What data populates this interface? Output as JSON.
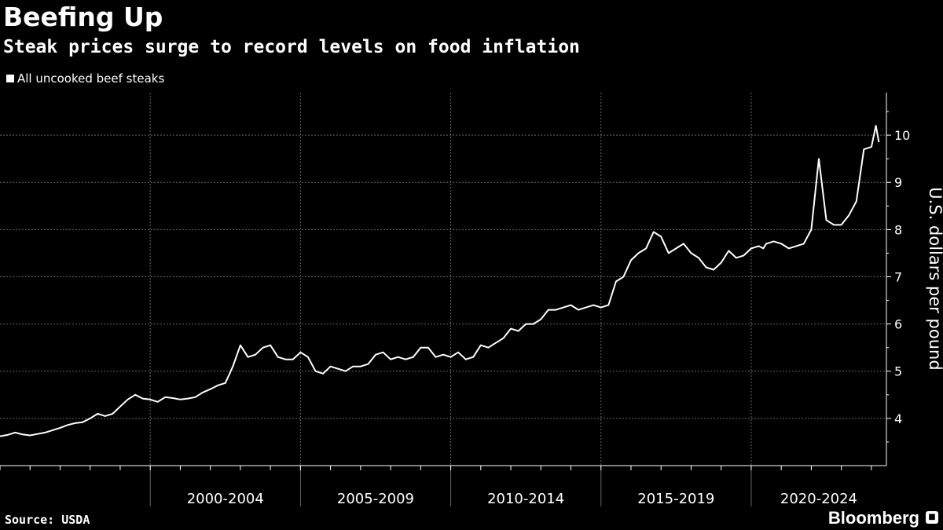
{
  "header": {
    "title": "Beefing Up",
    "subtitle": "Steak prices surge to record levels on food inflation"
  },
  "footer": {
    "source": "Source: USDA",
    "brand": "Bloomberg"
  },
  "colors": {
    "background": "#000000",
    "series": "#ffffff",
    "grid": "#666666",
    "text": "#ffffff"
  },
  "icons": {
    "brand_icon": "bloomberg-terminal-icon"
  },
  "chart_data": {
    "type": "line",
    "title": "Beefing Up",
    "subtitle": "Steak prices surge to record levels on food inflation",
    "ylabel": "U.S. dollars per pound",
    "xlabel": "",
    "ylim": [
      3,
      10.9
    ],
    "yticks": [
      4,
      5,
      6,
      7,
      8,
      9,
      10
    ],
    "xlim": [
      1995,
      2024.5
    ],
    "x_groups": [
      {
        "label": "2000-2004",
        "start": 2000,
        "end": 2005
      },
      {
        "label": "2005-2009",
        "start": 2005,
        "end": 2010
      },
      {
        "label": "2010-2014",
        "start": 2010,
        "end": 2015
      },
      {
        "label": "2015-2019",
        "start": 2015,
        "end": 2020
      },
      {
        "label": "2020-2024",
        "start": 2020,
        "end": 2025
      }
    ],
    "grid": true,
    "legend_position": "top-left",
    "series": [
      {
        "name": "All uncooked beef steaks",
        "x": [
          1995.0,
          1995.25,
          1995.5,
          1995.75,
          1996.0,
          1996.25,
          1996.5,
          1996.75,
          1997.0,
          1997.25,
          1997.5,
          1997.75,
          1998.0,
          1998.25,
          1998.5,
          1998.75,
          1999.0,
          1999.25,
          1999.5,
          1999.75,
          2000.0,
          2000.25,
          2000.5,
          2000.75,
          2001.0,
          2001.25,
          2001.5,
          2001.75,
          2002.0,
          2002.25,
          2002.5,
          2002.75,
          2003.0,
          2003.25,
          2003.5,
          2003.75,
          2004.0,
          2004.25,
          2004.5,
          2004.75,
          2005.0,
          2005.25,
          2005.5,
          2005.75,
          2006.0,
          2006.25,
          2006.5,
          2006.75,
          2007.0,
          2007.25,
          2007.5,
          2007.75,
          2008.0,
          2008.25,
          2008.5,
          2008.75,
          2009.0,
          2009.25,
          2009.5,
          2009.75,
          2010.0,
          2010.25,
          2010.5,
          2010.75,
          2011.0,
          2011.25,
          2011.5,
          2011.75,
          2012.0,
          2012.25,
          2012.5,
          2012.75,
          2013.0,
          2013.25,
          2013.5,
          2013.75,
          2014.0,
          2014.25,
          2014.5,
          2014.75,
          2015.0,
          2015.25,
          2015.5,
          2015.75,
          2016.0,
          2016.25,
          2016.5,
          2016.75,
          2017.0,
          2017.25,
          2017.5,
          2017.75,
          2018.0,
          2018.25,
          2018.5,
          2018.75,
          2019.0,
          2019.25,
          2019.5,
          2019.75,
          2020.0,
          2020.25,
          2020.4,
          2020.5,
          2020.75,
          2021.0,
          2021.25,
          2021.5,
          2021.75,
          2022.0,
          2022.25,
          2022.5,
          2022.75,
          2023.0,
          2023.25,
          2023.5,
          2023.75,
          2024.0,
          2024.15,
          2024.25
        ],
        "values": [
          3.62,
          3.65,
          3.7,
          3.66,
          3.64,
          3.67,
          3.7,
          3.75,
          3.8,
          3.86,
          3.9,
          3.92,
          4.0,
          4.1,
          4.05,
          4.1,
          4.25,
          4.4,
          4.5,
          4.42,
          4.4,
          4.35,
          4.45,
          4.43,
          4.4,
          4.42,
          4.45,
          4.55,
          4.62,
          4.7,
          4.75,
          5.1,
          5.55,
          5.3,
          5.35,
          5.5,
          5.55,
          5.3,
          5.25,
          5.25,
          5.4,
          5.3,
          5.0,
          4.95,
          5.1,
          5.05,
          5.0,
          5.1,
          5.1,
          5.15,
          5.35,
          5.4,
          5.25,
          5.3,
          5.25,
          5.3,
          5.5,
          5.5,
          5.3,
          5.35,
          5.3,
          5.4,
          5.25,
          5.3,
          5.55,
          5.5,
          5.6,
          5.7,
          5.9,
          5.85,
          6.0,
          6.0,
          6.1,
          6.3,
          6.3,
          6.35,
          6.4,
          6.3,
          6.35,
          6.4,
          6.35,
          6.4,
          6.9,
          7.0,
          7.35,
          7.5,
          7.6,
          7.95,
          7.85,
          7.5,
          7.6,
          7.7,
          7.5,
          7.4,
          7.2,
          7.15,
          7.3,
          7.55,
          7.4,
          7.45,
          7.6,
          7.65,
          7.6,
          7.7,
          7.75,
          7.7,
          7.6,
          7.65,
          7.7,
          8.0,
          9.5,
          8.2,
          8.1,
          8.1,
          8.3,
          8.6,
          9.7,
          9.75,
          10.2,
          9.85
        ]
      }
    ]
  }
}
